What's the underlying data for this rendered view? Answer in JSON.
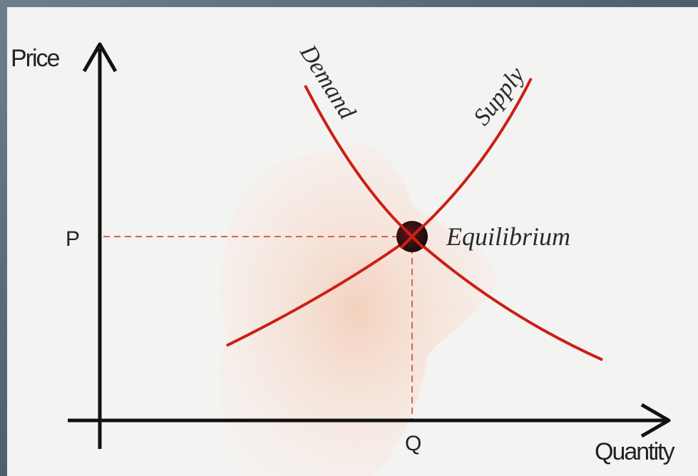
{
  "axes": {
    "y_label": "Price",
    "x_label": "Quantity"
  },
  "markers": {
    "price": "P",
    "quantity": "Q"
  },
  "curves": {
    "demand": "Demand",
    "supply": "Supply"
  },
  "point": {
    "label": "Equilibrium"
  }
}
